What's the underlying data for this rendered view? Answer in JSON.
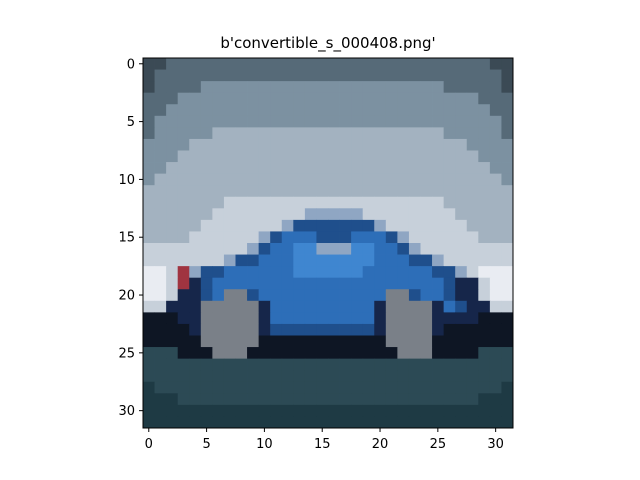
{
  "chart_data": {
    "type": "heatmap",
    "title": "b'convertible_s_000408.png'",
    "xlabel": "",
    "ylabel": "",
    "xlim": [
      -0.5,
      31.5
    ],
    "ylim": [
      31.5,
      -0.5
    ],
    "xticks": [
      0,
      5,
      10,
      15,
      20,
      25,
      30
    ],
    "yticks": [
      0,
      5,
      10,
      15,
      20,
      25,
      30
    ],
    "image_size": [
      32,
      32
    ],
    "grid": false,
    "legend": "none",
    "palette": {
      "A": "#3b4a55",
      "B": "#566a78",
      "C": "#7c91a1",
      "D": "#a3b2c0",
      "E": "#c7d0da",
      "F": "#e9ecf2",
      "G": "#1f4f8c",
      "H": "#2d6eb8",
      "I": "#3f86d0",
      "J": "#16264a",
      "K": "#0e1624",
      "L": "#7a8088",
      "M": "#a03440",
      "N": "#2c4a55",
      "O": "#1e3a44",
      "P": "#8fa6c3"
    },
    "pixels": [
      "AABBBBBBBBBBBBBBBBBBBBBBBBBBBBAA",
      "ABBBBBBBBBBBBBBBBBBBBBBBBBBBBBBA",
      "ABBBBCCCCCCCCCCCCCCCCCCCCCBBBBBA",
      "BBBCCCCCCCCCCCCCCCCCCCCCCCCCCBBB",
      "BBCCCCCCCCCCCCCCCCCCCCCCCCCCCCBB",
      "BCCCCCCCCCCCCCCCCCCCCCCCCCCCCCCB",
      "BCCCCCDDDDDDDDDDDDDDDDDDDDCCCCCB",
      "CCCCDDDDDDDDDDDDDDDDDDDDDDDDCCCC",
      "CCCDDDDDDDDDDDDDDDDDDDDDDDDDDCCC",
      "CCDDDDDDDDDDDDDDDDDDDDDDDDDDDDCC",
      "CDDDDDDDDDDDDDDDDDDDDDDDDDDDDDDC",
      "DDDDDDDDDDDDDDDDDDDDDDDDDDDDDDDD",
      "DDDDDDDEEEEEEEEEEEEEEEEEEEDDDDDD",
      "DDDDDDEEEEEEEEPPPPPEEEEEEEEDDDDD",
      "DDDDDEEEEEEEPGGGGGGGPEEEEEEEDDDD",
      "DDDDEEEEEEPGHHHGGGHHHGPEEEEEEDDD",
      "EEEEEEEEEPGHHIIPPPIIHHGPEEEEEEEE",
      "EEEEEEEPGGHHHIIIIIIIHHHGGPEEEEEE",
      "FFEMPGGHHHHHHIIIIIIHHHHHHGGPEFFF",
      "FFEMJGHHHHHHHHHHHHHHHHHHHHGJJEFF",
      "FFEJJGHLLGHHHHHHHHHHHLLGHHGJJEFF",
      "EEJJJLLLLLJHHHHHHHHHJLLLLJHGJJEE",
      "KKKJJLLLLLJHHHHHHHHHJLLLLJJJJKKK",
      "KKKKJLLLLLJGGGGGGGGGJLLLLJKKKKKK",
      "KKKKKLLLLLKKKKKKKKKKKLLLLKKKKKKK",
      "NNNKKKLLLKKKKKKKKKKKKKLLLKKKKNNN",
      "NNNNNNNNNNNNNNNNNNNNNNNNNNNNNNNN",
      "NNNNNNNNNNNNNNNNNNNNNNNNNNNNNNNN",
      "ONNNNNNNNNNNNNNNNNNNNNNNNNNNNNNO",
      "OOONNNNNNNNNNNNNNNNNNNNNNNNNNOOO",
      "OOOOOOOOOOOOOOOOOOOOOOOOOOOOOOOO",
      "OOOOOOOOOOOOOOOOOOOOOOOOOOOOOOOO"
    ]
  }
}
